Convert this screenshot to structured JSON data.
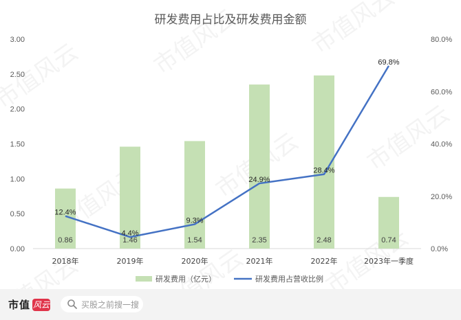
{
  "chart_data": {
    "type": "bar",
    "title": "研发费用占比及研发费用金额",
    "categories": [
      "2018年",
      "2019年",
      "2020年",
      "2021年",
      "2022年",
      "2023年一季度"
    ],
    "series": [
      {
        "name": "研发费用（亿元）",
        "type": "bar",
        "axis": "left",
        "values": [
          0.86,
          1.46,
          1.54,
          2.35,
          2.48,
          0.74
        ],
        "labels": [
          "0.86",
          "1.46",
          "1.54",
          "2.35",
          "2.48",
          "0.74"
        ],
        "color": "#c5e0b4"
      },
      {
        "name": "研发费用占营收比例",
        "type": "line",
        "axis": "right",
        "values": [
          12.4,
          4.4,
          9.3,
          24.9,
          28.4,
          69.8
        ],
        "labels": [
          "12.4%",
          "4.4%",
          "9.3%",
          "24.9%",
          "28.4%",
          "69.8%"
        ],
        "color": "#4472c4"
      }
    ],
    "y_left": {
      "range": [
        0,
        3
      ],
      "ticks": [
        "0.00",
        "0.50",
        "1.00",
        "1.50",
        "2.00",
        "2.50",
        "3.00"
      ]
    },
    "y_right": {
      "range": [
        0,
        80
      ],
      "ticks": [
        "0.0%",
        "20.0%",
        "40.0%",
        "60.0%",
        "80.0%"
      ]
    },
    "grid": false,
    "legend": "bottom"
  },
  "watermark": "市值风云",
  "footer": {
    "brand": "市值",
    "brand_logo": "风云",
    "search_placeholder": "买股之前搜一搜",
    "search_icon": "search-icon"
  }
}
